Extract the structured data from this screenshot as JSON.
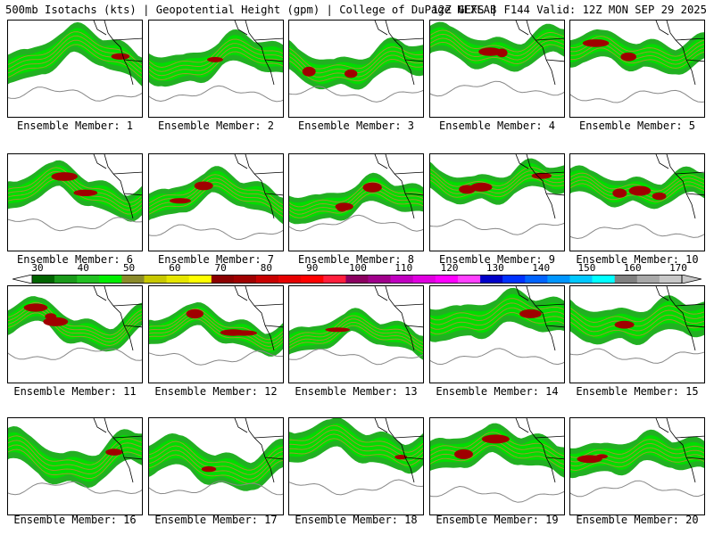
{
  "header": {
    "left": "500mb Isotachs (kts) | Geopotential Height (gpm) | College of DuPage NEXLAB",
    "right": "12Z GEFS | F144 Valid: 12Z MON SEP 29 2025"
  },
  "members": [
    {
      "label": "Ensemble Member: 1"
    },
    {
      "label": "Ensemble Member: 2"
    },
    {
      "label": "Ensemble Member: 3"
    },
    {
      "label": "Ensemble Member: 4"
    },
    {
      "label": "Ensemble Member: 5"
    },
    {
      "label": "Ensemble Member: 6"
    },
    {
      "label": "Ensemble Member: 7"
    },
    {
      "label": "Ensemble Member: 8"
    },
    {
      "label": "Ensemble Member: 9"
    },
    {
      "label": "Ensemble Member: 10"
    },
    {
      "label": "Ensemble Member: 11"
    },
    {
      "label": "Ensemble Member: 12"
    },
    {
      "label": "Ensemble Member: 13"
    },
    {
      "label": "Ensemble Member: 14"
    },
    {
      "label": "Ensemble Member: 15"
    },
    {
      "label": "Ensemble Member: 16"
    },
    {
      "label": "Ensemble Member: 17"
    },
    {
      "label": "Ensemble Member: 18"
    },
    {
      "label": "Ensemble Member: 19"
    },
    {
      "label": "Ensemble Member: 20"
    }
  ],
  "colorbar": {
    "labels": [
      "30",
      "40",
      "50",
      "60",
      "70",
      "80",
      "90",
      "100",
      "110",
      "120",
      "130",
      "140",
      "150",
      "160",
      "170"
    ],
    "colors": [
      "#006400",
      "#1a9a1a",
      "#22c022",
      "#00ee00",
      "#8b8b2a",
      "#c8c800",
      "#e6e600",
      "#ffff00",
      "#8b0000",
      "#a00000",
      "#c80000",
      "#e60000",
      "#ff0000",
      "#ff1e3c",
      "#8b0060",
      "#a0008b",
      "#c000c0",
      "#e000e0",
      "#ff00ff",
      "#ff40ff",
      "#0000c8",
      "#0032ff",
      "#0064ff",
      "#0096ff",
      "#00c8ff",
      "#00ffff",
      "#808080",
      "#a8a8a8",
      "#c8c8c8"
    ]
  }
}
